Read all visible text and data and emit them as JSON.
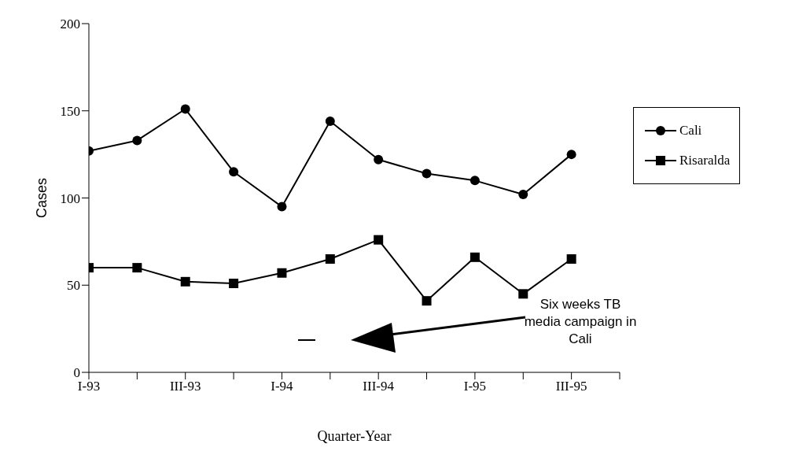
{
  "chart_data": {
    "type": "line",
    "xlabel": "Quarter-Year",
    "ylabel": "Cases",
    "categories": [
      "I-93",
      null,
      "III-93",
      null,
      "I-94",
      null,
      "III-94",
      null,
      "I-95",
      null,
      "III-95",
      null
    ],
    "series": [
      {
        "name": "Cali",
        "color": "#000000",
        "marker": "circle",
        "values": [
          127,
          133,
          151,
          115,
          95,
          144,
          122,
          114,
          110,
          102,
          125,
          null
        ]
      },
      {
        "name": "Risaralda",
        "color": "#000000",
        "marker": "square",
        "values": [
          60,
          60,
          52,
          51,
          57,
          65,
          76,
          41,
          66,
          45,
          65,
          null
        ]
      }
    ],
    "ylim": [
      0,
      200
    ],
    "yticks": [
      0,
      50,
      100,
      150,
      200
    ],
    "grid": false,
    "legend": "right",
    "line_style": "solid",
    "annotations": [
      "Six weeks TB media campaign in Cali"
    ]
  }
}
